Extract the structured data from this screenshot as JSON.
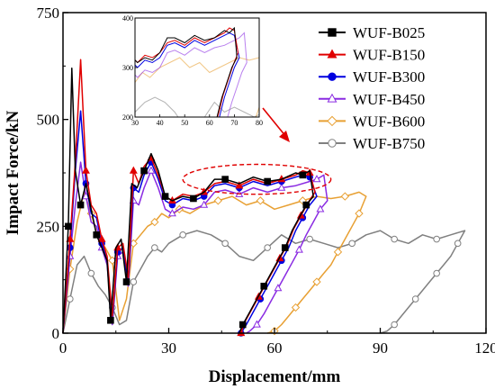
{
  "chart_data": {
    "type": "line",
    "title": "",
    "xlabel": "Displacement/mm",
    "ylabel": "Impact Force/kN",
    "xlim": [
      0,
      120
    ],
    "ylim": [
      0,
      750
    ],
    "xticks": [
      "0",
      "30",
      "60",
      "90",
      "120"
    ],
    "yticks": [
      "0",
      "250",
      "500",
      "750"
    ],
    "legend_position": "top-right",
    "grid": false,
    "series": [
      {
        "name": "WUF-B025",
        "color": "#000000",
        "marker": "square",
        "filled": true,
        "x": [
          0,
          1.5,
          2.5,
          3.5,
          5,
          6.5,
          8,
          9.5,
          11,
          12.5,
          13.5,
          15,
          16.5,
          18,
          19.5,
          21,
          23,
          25,
          27,
          29,
          31,
          34,
          37,
          40,
          43,
          46,
          50,
          54,
          58,
          62,
          66,
          68,
          70,
          71,
          69,
          67,
          65,
          63,
          61,
          59,
          57,
          55,
          53,
          51,
          50
        ],
        "y": [
          0,
          250,
          620,
          380,
          300,
          350,
          290,
          230,
          200,
          170,
          30,
          200,
          220,
          120,
          350,
          340,
          380,
          420,
          380,
          320,
          310,
          320,
          315,
          330,
          360,
          360,
          350,
          365,
          355,
          360,
          375,
          370,
          380,
          320,
          300,
          270,
          240,
          200,
          170,
          140,
          110,
          80,
          50,
          20,
          0
        ]
      },
      {
        "name": "WUF-B150",
        "color": "#e00000",
        "marker": "triangle",
        "filled": true,
        "x": [
          0,
          2,
          3.5,
          5,
          6.5,
          8,
          9.5,
          11,
          12.5,
          14,
          15.5,
          17,
          18.5,
          20,
          21.5,
          23,
          25,
          27,
          29,
          31,
          34,
          37,
          40,
          43,
          46,
          50,
          54,
          58,
          62,
          66,
          68,
          70,
          71.5,
          69.5,
          67.5,
          65.5,
          63.5,
          61.5,
          59.5,
          57.5,
          55.5,
          53.5,
          51.5,
          50.5
        ],
        "y": [
          0,
          220,
          400,
          640,
          380,
          300,
          280,
          220,
          180,
          40,
          200,
          210,
          130,
          380,
          350,
          390,
          410,
          370,
          320,
          310,
          325,
          320,
          330,
          350,
          355,
          345,
          360,
          350,
          360,
          370,
          380,
          375,
          330,
          305,
          275,
          245,
          205,
          175,
          145,
          115,
          85,
          55,
          25,
          0
        ]
      },
      {
        "name": "WUF-B300",
        "color": "#0000e0",
        "marker": "circle",
        "filled": true,
        "x": [
          0,
          2,
          3.5,
          5,
          6.5,
          8,
          9.5,
          11,
          12.5,
          14,
          15.5,
          17,
          18.5,
          20,
          21.5,
          23,
          25,
          27,
          29,
          31,
          34,
          37,
          40,
          43,
          46,
          50,
          54,
          58,
          62,
          66,
          68,
          70,
          72,
          70,
          68,
          66,
          64,
          62,
          60,
          58,
          56,
          54,
          52,
          50.5
        ],
        "y": [
          0,
          200,
          380,
          520,
          350,
          280,
          270,
          210,
          170,
          30,
          190,
          200,
          120,
          340,
          330,
          370,
          400,
          360,
          310,
          300,
          315,
          310,
          320,
          345,
          350,
          340,
          355,
          345,
          355,
          365,
          370,
          365,
          320,
          300,
          270,
          240,
          200,
          170,
          140,
          110,
          80,
          50,
          20,
          0
        ]
      },
      {
        "name": "WUF-B450",
        "color": "#8a2be2",
        "marker": "triangle",
        "filled": false,
        "x": [
          0,
          2,
          3.5,
          5,
          6.5,
          8,
          9.5,
          11,
          12.5,
          14,
          15.5,
          17,
          18.5,
          20,
          21.5,
          23,
          25,
          27,
          29,
          31,
          34,
          37,
          40,
          43,
          46,
          50,
          54,
          58,
          62,
          66,
          70,
          72,
          74,
          75,
          73,
          71,
          69,
          67,
          65,
          63,
          61,
          59,
          57,
          55,
          53,
          52
        ],
        "y": [
          0,
          180,
          300,
          400,
          320,
          260,
          250,
          200,
          160,
          20,
          180,
          190,
          110,
          310,
          300,
          340,
          380,
          340,
          290,
          280,
          295,
          290,
          300,
          330,
          335,
          325,
          340,
          330,
          340,
          345,
          355,
          360,
          370,
          310,
          290,
          260,
          230,
          195,
          165,
          135,
          105,
          75,
          45,
          20,
          5,
          0
        ]
      },
      {
        "name": "WUF-B600",
        "color": "#e8a033",
        "marker": "diamond",
        "filled": false,
        "x": [
          0,
          2,
          4,
          6,
          8,
          10,
          12,
          14,
          16,
          18,
          20,
          22,
          24,
          26,
          28,
          30,
          33,
          36,
          40,
          44,
          48,
          52,
          56,
          60,
          64,
          68,
          72,
          76,
          80,
          84,
          86,
          84,
          82,
          80,
          78,
          76,
          74,
          72,
          70,
          68,
          66,
          64,
          62,
          60,
          58
        ],
        "y": [
          0,
          150,
          260,
          330,
          280,
          220,
          200,
          170,
          30,
          80,
          210,
          230,
          250,
          260,
          280,
          270,
          290,
          280,
          300,
          310,
          320,
          300,
          310,
          290,
          300,
          310,
          320,
          315,
          320,
          330,
          320,
          280,
          250,
          220,
          190,
          160,
          140,
          120,
          100,
          80,
          60,
          40,
          20,
          5,
          0
        ]
      },
      {
        "name": "WUF-B750",
        "color": "#808080",
        "marker": "circle",
        "filled": false,
        "x": [
          0,
          2,
          4,
          6,
          8,
          10,
          12,
          14,
          16,
          18,
          20,
          22,
          24,
          26,
          28,
          30,
          34,
          38,
          42,
          46,
          50,
          54,
          58,
          62,
          66,
          70,
          74,
          78,
          82,
          86,
          90,
          94,
          98,
          102,
          106,
          110,
          114,
          112,
          110,
          108,
          106,
          104,
          102,
          100,
          98,
          96,
          94,
          92,
          90
        ],
        "y": [
          0,
          80,
          160,
          180,
          140,
          110,
          90,
          60,
          20,
          30,
          120,
          150,
          180,
          200,
          190,
          210,
          230,
          240,
          230,
          210,
          180,
          170,
          200,
          230,
          210,
          220,
          210,
          200,
          210,
          230,
          240,
          220,
          210,
          230,
          220,
          230,
          240,
          210,
          180,
          160,
          140,
          120,
          100,
          80,
          60,
          40,
          20,
          5,
          0
        ]
      }
    ],
    "inset": {
      "xlim": [
        30,
        80
      ],
      "ylim": [
        200,
        400
      ],
      "xticks": [
        "30",
        "40",
        "50",
        "60",
        "70",
        "80"
      ],
      "yticks": [
        "200",
        "300",
        "400"
      ]
    },
    "annotation": {
      "type": "dashed-ellipse-with-arrow",
      "color": "#e00000",
      "center": [
        55,
        360
      ],
      "rx_data": 21,
      "ry_data": 35
    }
  }
}
